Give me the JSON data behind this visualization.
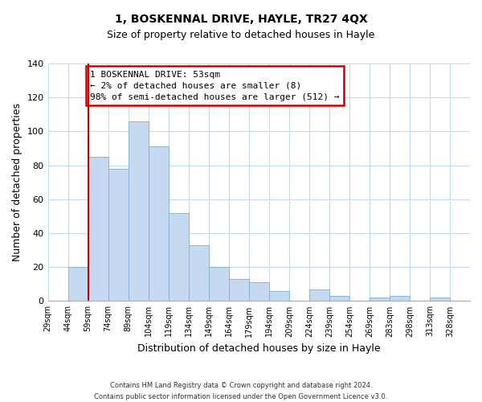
{
  "title": "1, BOSKENNAL DRIVE, HAYLE, TR27 4QX",
  "subtitle": "Size of property relative to detached houses in Hayle",
  "xlabel": "Distribution of detached houses by size in Hayle",
  "ylabel": "Number of detached properties",
  "bin_labels": [
    "29sqm",
    "44sqm",
    "59sqm",
    "74sqm",
    "89sqm",
    "104sqm",
    "119sqm",
    "134sqm",
    "149sqm",
    "164sqm",
    "179sqm",
    "194sqm",
    "209sqm",
    "224sqm",
    "239sqm",
    "254sqm",
    "269sqm",
    "283sqm",
    "298sqm",
    "313sqm",
    "328sqm"
  ],
  "bar_values": [
    0,
    20,
    85,
    78,
    106,
    91,
    52,
    33,
    20,
    13,
    11,
    6,
    0,
    7,
    3,
    0,
    2,
    3,
    0,
    2,
    0
  ],
  "bar_color": "#c5d9f0",
  "bar_edge_color": "#7bafd4",
  "vline_x_index": 2,
  "vline_color": "#cc0000",
  "ylim": [
    0,
    140
  ],
  "yticks": [
    0,
    20,
    40,
    60,
    80,
    100,
    120,
    140
  ],
  "annotation_lines": [
    "1 BOSKENNAL DRIVE: 53sqm",
    "← 2% of detached houses are smaller (8)",
    "98% of semi-detached houses are larger (512) →"
  ],
  "footer_lines": [
    "Contains HM Land Registry data © Crown copyright and database right 2024.",
    "Contains public sector information licensed under the Open Government Licence v3.0."
  ],
  "background_color": "#ffffff",
  "grid_color": "#c8d8ec",
  "title_fontsize": 10,
  "subtitle_fontsize": 9,
  "axis_label_fontsize": 8,
  "tick_fontsize": 7,
  "annotation_fontsize": 8,
  "footer_fontsize": 6
}
